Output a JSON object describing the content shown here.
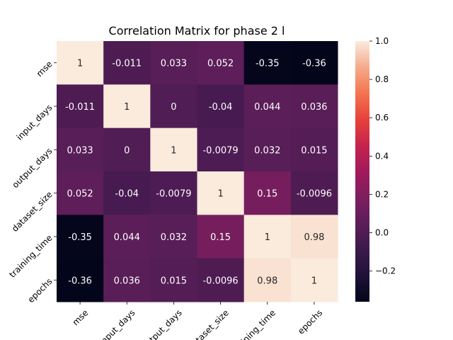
{
  "chart_data": {
    "type": "heatmap",
    "title": "Correlation Matrix for phase 2 l",
    "row_labels": [
      "mse",
      "input_days",
      "output_days",
      "dataset_size",
      "training_time",
      "epochs"
    ],
    "col_labels": [
      "mse",
      "input_days",
      "output_days",
      "dataset_size",
      "training_time",
      "epochs"
    ],
    "values": [
      [
        1,
        -0.011,
        0.033,
        0.052,
        -0.35,
        -0.36
      ],
      [
        -0.011,
        1,
        0,
        -0.04,
        0.044,
        0.036
      ],
      [
        0.033,
        0,
        1,
        -0.0079,
        0.032,
        0.015
      ],
      [
        0.052,
        -0.04,
        -0.0079,
        1,
        0.15,
        -0.0096
      ],
      [
        -0.35,
        0.044,
        0.032,
        0.15,
        1,
        0.98
      ],
      [
        -0.36,
        0.036,
        0.015,
        -0.0096,
        0.98,
        1
      ]
    ],
    "annotations": [
      [
        "1",
        "-0.011",
        "0.033",
        "0.052",
        "-0.35",
        "-0.36"
      ],
      [
        "-0.011",
        "1",
        "0",
        "-0.04",
        "0.044",
        "0.036"
      ],
      [
        "0.033",
        "0",
        "1",
        "-0.0079",
        "0.032",
        "0.015"
      ],
      [
        "0.052",
        "-0.04",
        "-0.0079",
        "1",
        "0.15",
        "-0.0096"
      ],
      [
        "-0.35",
        "0.044",
        "0.032",
        "0.15",
        "1",
        "0.98"
      ],
      [
        "-0.36",
        "0.036",
        "0.015",
        "-0.0096",
        "0.98",
        "1"
      ]
    ],
    "colormap": "rocket",
    "colorbar": {
      "range": [
        -0.36,
        1.0
      ],
      "ticks": [
        -0.2,
        0.0,
        0.2,
        0.4,
        0.6,
        0.8,
        1.0
      ],
      "tick_labels": [
        "−0.2",
        "0.0",
        "0.2",
        "0.4",
        "0.6",
        "0.8",
        "1.0"
      ]
    },
    "grid": false,
    "legend": "colorbar-right"
  }
}
